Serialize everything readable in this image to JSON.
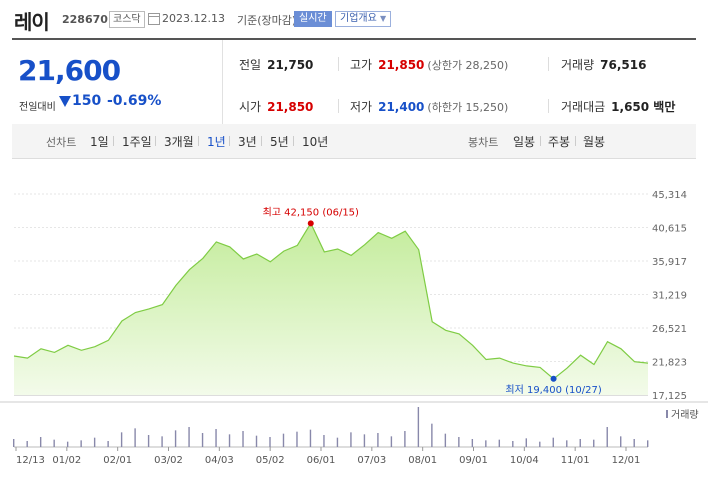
{
  "header": {
    "stock_name": "레이",
    "stock_code": "228670",
    "market": "코스닥",
    "basis_date": "2023.12.13",
    "basis_label": "기준(장마감)",
    "realtime": "실시간",
    "company_info": "기업개요"
  },
  "summary": {
    "price": "21,600",
    "change_label": "전일대비",
    "change": "150",
    "change_rate": "-0.69%",
    "prev_close_label": "전일",
    "prev_close": "21,750",
    "high_label": "고가",
    "high": "21,850",
    "upper_limit": "(상한가 28,250)",
    "volume_label": "거래량",
    "volume": "76,516",
    "open_label": "시가",
    "open": "21,850",
    "low_label": "저가",
    "low": "21,400",
    "lower_limit": "(하한가 15,250)",
    "amount_label": "거래대금",
    "amount": "1,650 백만"
  },
  "period_bar": {
    "line_label": "선차트",
    "line_periods": [
      "1일",
      "1주일",
      "3개월",
      "1년",
      "3년",
      "5년",
      "10년"
    ],
    "active": "1년",
    "candle_label": "봉차트",
    "candle_periods": [
      "일봉",
      "주봉",
      "월봉"
    ]
  },
  "colors": {
    "up": "#d60000",
    "down": "#1750c8",
    "line": "#7fcc44",
    "fill_top": "#c4ec9c",
    "fill_bottom": "#f3fbea",
    "volume": "#8888aa"
  },
  "chart_data": {
    "type": "area",
    "y_ticks": [
      "45,314",
      "40,615",
      "35,917",
      "31,219",
      "26,521",
      "21,823",
      "17,125"
    ],
    "ylim": [
      17125,
      45314
    ],
    "x_ticks": [
      "12/13",
      "01/02",
      "02/01",
      "03/02",
      "04/03",
      "05/02",
      "06/01",
      "07/03",
      "08/01",
      "09/01",
      "10/04",
      "11/01",
      "12/01"
    ],
    "max_label": "최고 42,150 (06/15)",
    "min_label": "최저 19,400 (10/27)",
    "max_index": 22,
    "min_index": 40,
    "values": [
      22600,
      22300,
      23600,
      23100,
      24100,
      23400,
      23900,
      24800,
      27500,
      28700,
      29200,
      29800,
      32500,
      34700,
      36300,
      38600,
      37900,
      36200,
      36900,
      35800,
      37300,
      38100,
      41200,
      37200,
      37600,
      36700,
      38200,
      39900,
      39100,
      40100,
      37500,
      27400,
      26200,
      25700,
      24100,
      22100,
      22300,
      21600,
      21200,
      21000,
      19400,
      20900,
      22700,
      21400,
      24600,
      23600,
      21800,
      21600
    ],
    "volume_label": "거래량",
    "volumes": [
      12,
      9,
      15,
      11,
      8,
      10,
      14,
      9,
      22,
      28,
      18,
      16,
      25,
      30,
      21,
      27,
      19,
      24,
      17,
      15,
      20,
      23,
      26,
      18,
      14,
      22,
      19,
      21,
      16,
      24,
      60,
      35,
      20,
      15,
      12,
      10,
      11,
      9,
      13,
      8,
      14,
      10,
      12,
      11,
      30,
      16,
      12,
      10
    ]
  }
}
